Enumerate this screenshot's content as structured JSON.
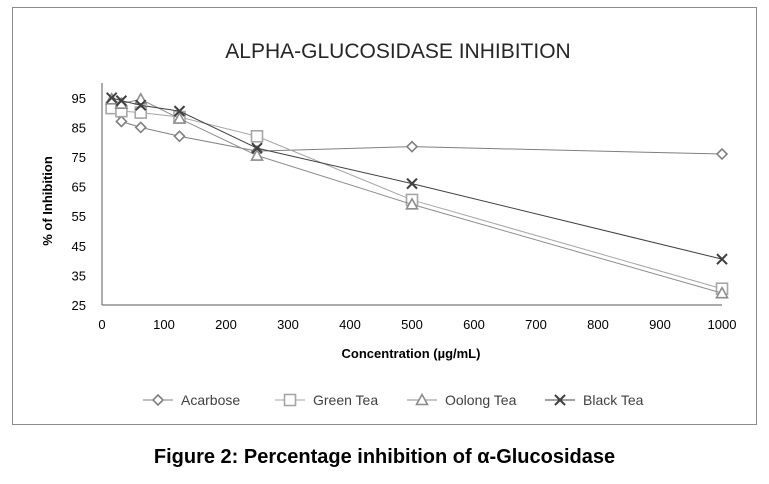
{
  "figure_caption": "Figure 2: Percentage inhibition of α-Glucosidase",
  "chart_data": {
    "type": "line",
    "title": "ALPHA-GLUCOSIDASE INHIBITION",
    "xlabel": "Concentration (µg/mL)",
    "ylabel": "% of Inhibition",
    "xlim": [
      0,
      1000
    ],
    "ylim": [
      25,
      100
    ],
    "x_ticks": [
      0,
      100,
      200,
      300,
      400,
      500,
      600,
      700,
      800,
      900,
      1000
    ],
    "y_ticks": [
      25,
      35,
      45,
      55,
      65,
      75,
      85,
      95
    ],
    "grid": false,
    "legend_position": "bottom",
    "series": [
      {
        "name": "Acarbose",
        "marker": "diamond",
        "color": "#7f7f7f",
        "x": [
          15.625,
          31.25,
          62.5,
          125,
          250,
          500,
          1000
        ],
        "y": [
          91.5,
          87,
          85,
          82,
          77,
          78.5,
          76
        ]
      },
      {
        "name": "Green Tea",
        "marker": "square",
        "color": "#a6a6a6",
        "x": [
          15.625,
          31.25,
          62.5,
          125,
          250,
          500,
          1000
        ],
        "y": [
          91.5,
          90.5,
          90,
          88.5,
          82,
          60.5,
          30.5
        ]
      },
      {
        "name": "Oolong Tea",
        "marker": "triangle",
        "color": "#8c8c8c",
        "x": [
          15.625,
          31.25,
          62.5,
          125,
          250,
          500,
          1000
        ],
        "y": [
          94.5,
          93,
          94.5,
          88,
          75.5,
          59,
          29
        ]
      },
      {
        "name": "Black Tea",
        "marker": "x",
        "color": "#404040",
        "x": [
          15.625,
          31.25,
          62.5,
          125,
          250,
          500,
          1000
        ],
        "y": [
          95,
          94,
          92.5,
          90.5,
          78,
          66,
          40.5
        ]
      }
    ]
  }
}
